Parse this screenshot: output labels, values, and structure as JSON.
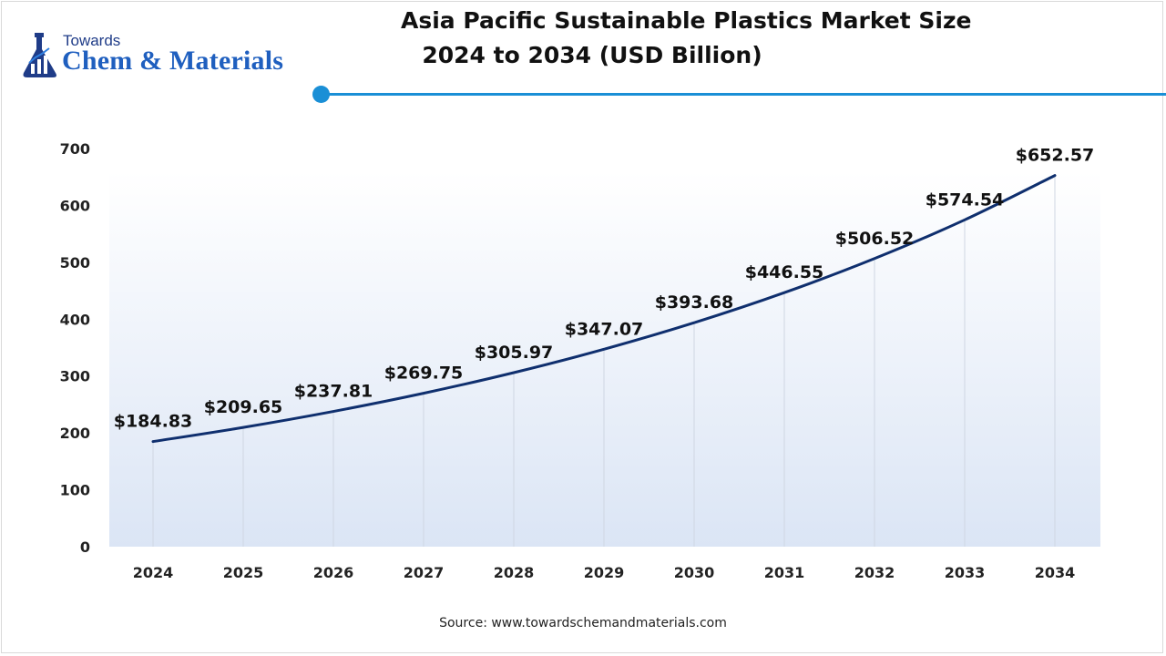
{
  "brand": {
    "small_text": "Towards",
    "large_text": "Chem & Materials",
    "logo_icon": "flask-bar-chart-icon",
    "color": "#1f5fbf"
  },
  "title": {
    "line1": "Asia Pacific Sustainable Plastics Market Size",
    "line2": "2024 to 2034 (USD Billion)"
  },
  "accent_color": "#1a8fd6",
  "line_color": "#0f2f6e",
  "source": "Source: www.towardschemandmaterials.com",
  "chart_data": {
    "type": "line",
    "title": "Asia Pacific Sustainable Plastics Market Size 2024 to 2034 (USD Billion)",
    "xlabel": "",
    "ylabel": "",
    "categories": [
      "2024",
      "2025",
      "2026",
      "2027",
      "2028",
      "2029",
      "2030",
      "2031",
      "2032",
      "2033",
      "2034"
    ],
    "values": [
      184.83,
      209.65,
      237.81,
      269.75,
      305.97,
      347.07,
      393.68,
      446.55,
      506.52,
      574.54,
      652.57
    ],
    "data_labels": [
      "$184.83",
      "$209.65",
      "$237.81",
      "$269.75",
      "$305.97",
      "$347.07",
      "$393.68",
      "$446.55",
      "$506.52",
      "$574.54",
      "$652.57"
    ],
    "ylim": [
      0,
      700
    ],
    "yticks": [
      0,
      100,
      200,
      300,
      400,
      500,
      600,
      700
    ],
    "grid": "vertical drop lines",
    "legend": "none"
  }
}
